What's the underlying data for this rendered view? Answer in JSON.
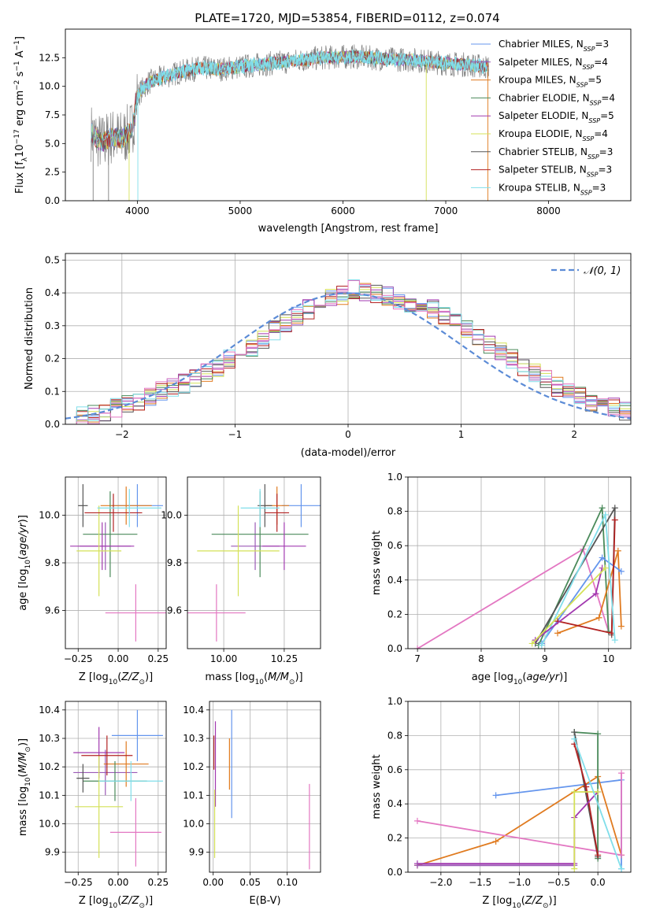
{
  "figure": {
    "title": "PLATE=1720, MJD=53854, FIBERID=0112, z=0.074"
  },
  "models": [
    {
      "name": "Chabrier MILES",
      "nssp": "3",
      "color": "#6495ed"
    },
    {
      "name": "Salpeter MILES",
      "nssp": "4",
      "color": "#9b59b6"
    },
    {
      "name": "Kroupa MILES",
      "nssp": "5",
      "color": "#e07b20"
    },
    {
      "name": "Chabrier ELODIE",
      "nssp": "4",
      "color": "#4a8a5a"
    },
    {
      "name": "Salpeter ELODIE",
      "nssp": "5",
      "color": "#a23ab0"
    },
    {
      "name": "Kroupa ELODIE",
      "nssp": "4",
      "color": "#d4e157"
    },
    {
      "name": "Chabrier STELIB",
      "nssp": "3",
      "color": "#555555"
    },
    {
      "name": "Salpeter STELIB",
      "nssp": "3",
      "color": "#b22222"
    },
    {
      "name": "Kroupa STELIB",
      "nssp": "3",
      "color": "#80deea"
    }
  ],
  "chart_data": [
    {
      "type": "line",
      "panel": "spectrum",
      "title": "PLATE=1720, MJD=53854, FIBERID=0112, z=0.074",
      "xlabel": "wavelength [Angstrom, rest frame]",
      "ylabel": "Flux [f_λ 10^-17 erg cm^-2 s^-1 A^-1]",
      "xlim": [
        3300,
        8800
      ],
      "ylim": [
        0,
        15
      ],
      "xticks": [
        4000,
        5000,
        6000,
        7000,
        8000
      ],
      "yticks": [
        0.0,
        2.5,
        5.0,
        7.5,
        10.0,
        12.5
      ],
      "grid": false,
      "legend": "right",
      "continuum": {
        "x": [
          3550,
          3650,
          3750,
          3850,
          3950,
          4000,
          4100,
          4250,
          4400,
          4600,
          4800,
          5000,
          5200,
          5500,
          5800,
          6100,
          6400,
          6700,
          7000,
          7200,
          7400
        ],
        "y": [
          6.0,
          5.0,
          5.6,
          5.4,
          6.3,
          9.2,
          10.3,
          10.8,
          11.2,
          11.6,
          11.5,
          11.7,
          11.9,
          12.2,
          12.5,
          12.6,
          12.4,
          12.3,
          12.0,
          11.9,
          11.7
        ]
      },
      "series": [
        {
          "name": "Chabrier MILES",
          "color": "#6495ed"
        },
        {
          "name": "Salpeter MILES",
          "color": "#9b59b6"
        },
        {
          "name": "Kroupa MILES",
          "color": "#e07b20"
        },
        {
          "name": "Chabrier ELODIE",
          "color": "#4a8a5a"
        },
        {
          "name": "Salpeter ELODIE",
          "color": "#a23ab0"
        },
        {
          "name": "Kroupa ELODIE",
          "color": "#d4e157"
        },
        {
          "name": "Chabrier STELIB",
          "color": "#555555"
        },
        {
          "name": "Salpeter STELIB",
          "color": "#b22222"
        },
        {
          "name": "Kroupa STELIB",
          "color": "#80deea"
        }
      ]
    },
    {
      "type": "line",
      "panel": "residual-histogram",
      "xlabel": "(data-model)/error",
      "ylabel": "Normed distribution",
      "xlim": [
        -2.5,
        2.5
      ],
      "ylim": [
        0,
        0.52
      ],
      "xticks": [
        -2,
        -1,
        0,
        1,
        2
      ],
      "yticks": [
        0.0,
        0.1,
        0.2,
        0.3,
        0.4,
        0.5
      ],
      "grid": true,
      "legend": "top-right",
      "legend_label": "N(0,1)",
      "gaussian": {
        "mu": 0,
        "sigma": 1
      },
      "bin_width": 0.1,
      "bins_start": -2.5,
      "base_histogram": [
        0.02,
        0.025,
        0.03,
        0.04,
        0.05,
        0.06,
        0.07,
        0.085,
        0.1,
        0.11,
        0.125,
        0.14,
        0.16,
        0.175,
        0.2,
        0.215,
        0.235,
        0.26,
        0.285,
        0.31,
        0.33,
        0.35,
        0.37,
        0.385,
        0.395,
        0.41,
        0.4,
        0.395,
        0.39,
        0.38,
        0.37,
        0.36,
        0.35,
        0.33,
        0.31,
        0.29,
        0.265,
        0.245,
        0.22,
        0.2,
        0.175,
        0.155,
        0.135,
        0.115,
        0.1,
        0.085,
        0.07,
        0.06,
        0.05,
        0.04
      ]
    },
    {
      "type": "scatter",
      "panel": "age-vs-Z",
      "xlabel": "Z [log10(Z/Z_sun)]",
      "ylabel": "age [log10(age/yr)]",
      "xlim": [
        -0.33,
        0.3
      ],
      "ylim": [
        9.44,
        10.16
      ],
      "xticks": [
        -0.25,
        0.0,
        0.25
      ],
      "yticks": [
        9.6,
        9.8,
        10.0
      ],
      "points": [
        {
          "series": "Chabrier MILES",
          "x": 0.12,
          "y": 10.04,
          "xerr": 0.16,
          "yerr": 0.09
        },
        {
          "series": "Salpeter MILES",
          "x": -0.08,
          "y": 9.87,
          "xerr": 0.16,
          "yerr": 0.1
        },
        {
          "series": "Kroupa MILES",
          "x": 0.05,
          "y": 10.04,
          "xerr": 0.16,
          "yerr": 0.08
        },
        {
          "series": "Chabrier ELODIE",
          "x": -0.05,
          "y": 9.92,
          "xerr": 0.17,
          "yerr": 0.18
        },
        {
          "series": "Salpeter ELODIE",
          "x": -0.1,
          "y": 9.87,
          "xerr": 0.2,
          "yerr": 0.1
        },
        {
          "series": "Kroupa ELODIE",
          "x": -0.12,
          "y": 9.85,
          "xerr": 0.14,
          "yerr": 0.19
        },
        {
          "series": "Chabrier STELIB",
          "x": -0.22,
          "y": 10.04,
          "xerr": 0.03,
          "yerr": 0.09
        },
        {
          "series": "Salpeter STELIB",
          "x": -0.03,
          "y": 10.01,
          "xerr": 0.18,
          "yerr": 0.08
        },
        {
          "series": "Kroupa STELIB",
          "x": 0.07,
          "y": 10.03,
          "xerr": 0.2,
          "yerr": 0.08
        },
        {
          "series": "pink",
          "x": 0.11,
          "y": 9.59,
          "xerr": 0.19,
          "yerr": 0.12
        }
      ]
    },
    {
      "type": "scatter",
      "panel": "age-vs-mass",
      "xlabel": "mass [log10(M/M_sun)]",
      "ylabel": "",
      "xlim": [
        9.85,
        10.4
      ],
      "ylim": [
        9.44,
        10.16
      ],
      "xticks": [
        10.0,
        10.25
      ],
      "yticks": [
        9.6,
        9.8,
        10.0
      ]
    },
    {
      "type": "line",
      "panel": "mass-weight-vs-age",
      "xlabel": "age [log10(age/yr)]",
      "ylabel": "mass weight",
      "xlim": [
        6.85,
        10.35
      ],
      "ylim": [
        0,
        1
      ],
      "xticks": [
        7,
        8,
        9,
        10
      ],
      "yticks": [
        0.0,
        0.2,
        0.4,
        0.6,
        0.8,
        1.0
      ],
      "series": [
        {
          "name": "pink",
          "color": "#e377c2",
          "x": [
            7.0,
            9.6,
            10.0
          ],
          "y": [
            0.0,
            0.58,
            0.1
          ]
        },
        {
          "name": "Chabrier ELODIE",
          "color": "#4a8a5a",
          "x": [
            8.9,
            9.9,
            10.0
          ],
          "y": [
            0.02,
            0.82,
            0.1
          ]
        },
        {
          "name": "Chabrier STELIB",
          "color": "#555555",
          "x": [
            8.85,
            10.1,
            10.05
          ],
          "y": [
            0.03,
            0.82,
            0.08
          ]
        },
        {
          "name": "Kroupa MILES",
          "color": "#e07b20",
          "x": [
            9.2,
            9.85,
            10.15,
            10.2
          ],
          "y": [
            0.09,
            0.18,
            0.57,
            0.13
          ]
        },
        {
          "name": "Chabrier MILES",
          "color": "#6495ed",
          "x": [
            8.95,
            9.9,
            10.2
          ],
          "y": [
            0.03,
            0.53,
            0.45
          ]
        },
        {
          "name": "Salpeter STELIB",
          "color": "#b22222",
          "x": [
            9.2,
            10.05,
            10.1
          ],
          "y": [
            0.16,
            0.09,
            0.75
          ]
        },
        {
          "name": "Kroupa STELIB",
          "color": "#80deea",
          "x": [
            8.95,
            9.95,
            10.1
          ],
          "y": [
            0.02,
            0.78,
            0.05
          ]
        },
        {
          "name": "Salpeter ELODIE",
          "color": "#a23ab0",
          "x": [
            8.85,
            9.8,
            9.9
          ],
          "y": [
            0.05,
            0.32,
            0.47
          ]
        },
        {
          "name": "Kroupa ELODIE",
          "color": "#d4e157",
          "x": [
            8.8,
            9.95
          ],
          "y": [
            0.03,
            0.47
          ]
        }
      ]
    },
    {
      "type": "scatter",
      "panel": "mass-vs-Z",
      "xlabel": "Z [log10(Z/Z_sun)]",
      "ylabel": "mass [log10(M/M_sun)]",
      "xlim": [
        -0.33,
        0.3
      ],
      "ylim": [
        9.83,
        10.43
      ],
      "xticks": [
        -0.25,
        0.0,
        0.25
      ],
      "yticks": [
        9.9,
        10.0,
        10.1,
        10.2,
        10.3,
        10.4
      ],
      "points": [
        {
          "series": "Chabrier MILES",
          "x": 0.12,
          "y": 10.31,
          "xerr": 0.16,
          "yerr": 0.09
        },
        {
          "series": "Salpeter MILES",
          "x": -0.08,
          "y": 10.18,
          "xerr": 0.2,
          "yerr": 0.08
        },
        {
          "series": "Kroupa MILES",
          "x": 0.05,
          "y": 10.21,
          "xerr": 0.14,
          "yerr": 0.08
        },
        {
          "series": "Chabrier ELODIE",
          "x": -0.02,
          "y": 10.15,
          "xerr": 0.2,
          "yerr": 0.07
        },
        {
          "series": "Salpeter ELODIE",
          "x": -0.12,
          "y": 10.25,
          "xerr": 0.16,
          "yerr": 0.09
        },
        {
          "series": "Kroupa ELODIE",
          "x": -0.12,
          "y": 10.06,
          "xerr": 0.15,
          "yerr": 0.18
        },
        {
          "series": "Chabrier STELIB",
          "x": -0.22,
          "y": 10.16,
          "xerr": 0.04,
          "yerr": 0.05
        },
        {
          "series": "Salpeter STELIB",
          "x": -0.07,
          "y": 10.24,
          "xerr": 0.16,
          "yerr": 0.07
        },
        {
          "series": "Kroupa STELIB",
          "x": 0.08,
          "y": 10.15,
          "xerr": 0.2,
          "yerr": 0.07
        },
        {
          "series": "pink",
          "x": 0.11,
          "y": 9.97,
          "xerr": 0.16,
          "yerr": 0.12
        }
      ]
    },
    {
      "type": "scatter",
      "panel": "mass-vs-EBV",
      "xlabel": "E(B-V)",
      "ylabel": "",
      "xlim": [
        -0.005,
        0.145
      ],
      "ylim": [
        9.83,
        10.43
      ],
      "xticks": [
        0.0,
        0.05,
        0.1
      ],
      "yticks": [
        9.9,
        10.0,
        10.1,
        10.2,
        10.3,
        10.4
      ],
      "points": [
        {
          "series": "Chabrier MILES",
          "x": 0.025,
          "y": 10.21,
          "yerr": 0.19
        },
        {
          "series": "Kroupa MILES",
          "x": 0.022,
          "y": 10.21,
          "yerr": 0.09
        },
        {
          "series": "Salpeter ELODIE",
          "x": 0.003,
          "y": 10.21,
          "yerr": 0.15
        },
        {
          "series": "Kroupa ELODIE",
          "x": 0.002,
          "y": 10.0,
          "yerr": 0.12
        },
        {
          "series": "Salpeter STELIB",
          "x": 0.001,
          "y": 10.25,
          "yerr": 0.06
        },
        {
          "series": "pink",
          "x": 0.13,
          "y": 9.99,
          "yerr": 0.15
        }
      ]
    },
    {
      "type": "line",
      "panel": "mass-weight-vs-Z",
      "xlabel": "Z [log10(Z/Z_sun)]",
      "ylabel": "mass weight",
      "xlim": [
        -2.42,
        0.42
      ],
      "ylim": [
        0,
        1
      ],
      "xticks": [
        -2.0,
        -1.5,
        -1.0,
        -0.5,
        0.0
      ],
      "yticks": [
        0.0,
        0.2,
        0.4,
        0.6,
        0.8,
        1.0
      ],
      "series": [
        {
          "name": "Chabrier MILES",
          "color": "#6495ed",
          "x": [
            -1.3,
            0.3,
            0.3
          ],
          "y": [
            0.45,
            0.54,
            0.02
          ]
        },
        {
          "name": "Kroupa MILES",
          "color": "#e07b20",
          "x": [
            -2.3,
            -1.3,
            0.0,
            0.3
          ],
          "y": [
            0.04,
            0.18,
            0.56,
            0.1
          ]
        },
        {
          "name": "pink",
          "color": "#e377c2",
          "x": [
            -2.3,
            0.3,
            0.3
          ],
          "y": [
            0.3,
            0.1,
            0.58
          ]
        },
        {
          "name": "Chabrier ELODIE",
          "color": "#4a8a5a",
          "x": [
            -0.3,
            0.0,
            0.0
          ],
          "y": [
            0.82,
            0.81,
            0.08
          ]
        },
        {
          "name": "Chabrier STELIB",
          "color": "#555555",
          "x": [
            -0.3,
            0.0
          ],
          "y": [
            0.82,
            0.09
          ]
        },
        {
          "name": "Salpeter STELIB",
          "color": "#b22222",
          "x": [
            -0.3,
            -0.15,
            0.0
          ],
          "y": [
            0.75,
            0.5,
            0.1
          ]
        },
        {
          "name": "Salpeter ELODIE",
          "color": "#a23ab0",
          "x": [
            -2.3,
            -0.3,
            -0.3,
            0.0
          ],
          "y": [
            0.05,
            0.05,
            0.32,
            0.47
          ]
        },
        {
          "name": "Salpeter MILES",
          "color": "#9b59b6",
          "x": [
            -2.3,
            -0.3
          ],
          "y": [
            0.04,
            0.04
          ]
        },
        {
          "name": "Kroupa ELODIE",
          "color": "#d4e157",
          "x": [
            -0.3,
            -0.3,
            0.0
          ],
          "y": [
            0.02,
            0.47,
            0.47
          ]
        },
        {
          "name": "Kroupa STELIB",
          "color": "#80deea",
          "x": [
            -0.3,
            0.3
          ],
          "y": [
            0.78,
            0.02
          ]
        }
      ]
    }
  ]
}
